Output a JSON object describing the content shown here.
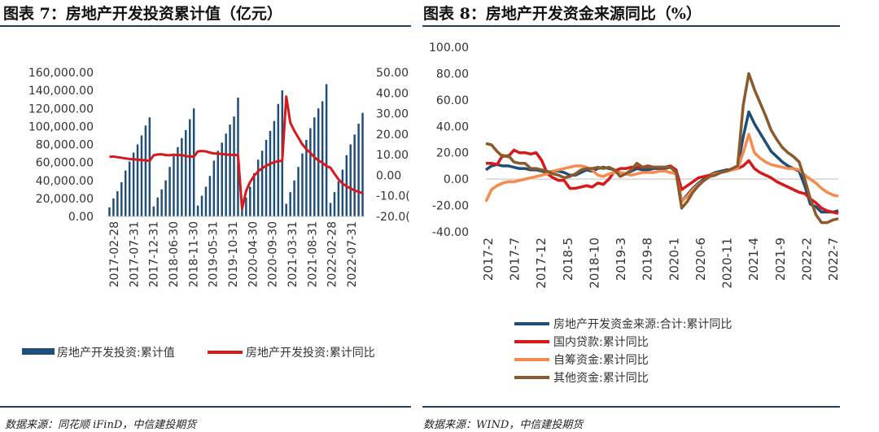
{
  "left": {
    "title": "图表 7：房地产开发投资累计值（亿元）",
    "source": "数据来源：同花顺 iFinD，中信建投期货"
  },
  "right": {
    "title": "图表 8：房地产开发资金来源同比（%）",
    "source": "数据来源：WIND，中信建投期货"
  },
  "colors": {
    "navy": "#1f4e79",
    "red": "#d7191c",
    "orange": "#f58b4c",
    "brown": "#8b5a2b"
  },
  "chart_data": [
    {
      "type": "bar+line",
      "title": "房地产开发投资累计值（亿元）",
      "y_left": {
        "range": [
          0,
          160000
        ],
        "ticks": [
          "160,000.00",
          "140,000.00",
          "120,000.00",
          "100,000.00",
          "80,000.00",
          "60,000.00",
          "40,000.00",
          "20,000.00",
          "0.00"
        ]
      },
      "y_right": {
        "range": [
          -20,
          50
        ],
        "ticks": [
          "50.00",
          "40.00",
          "30.00",
          "20.00",
          "10.00",
          "0.00",
          "-10.0(",
          "-20.0("
        ]
      },
      "x_ticks": [
        "2017-02-28",
        "2017-07-31",
        "2017-12-31",
        "2018-06-30",
        "2018-11-30",
        "2019-05-31",
        "2019-10-31",
        "2020-04-30",
        "2020-09-30",
        "2021-03-31",
        "2021-08-31",
        "2022-02-28",
        "2022-07-31"
      ],
      "bar_series": {
        "name": "房地产开发投资:累计值",
        "values": [
          10000,
          20000,
          28000,
          38000,
          51000,
          61000,
          71000,
          80000,
          90000,
          101000,
          110000,
          11000,
          21000,
          30000,
          40000,
          55000,
          67000,
          77000,
          87000,
          96000,
          108000,
          120000,
          12000,
          23000,
          33000,
          45000,
          62000,
          73000,
          82000,
          92000,
          102000,
          111000,
          132000,
          12000,
          21000,
          33000,
          48000,
          63000,
          73000,
          85000,
          95000,
          106000,
          125000,
          140000,
          14000,
          27000,
          40000,
          55000,
          70000,
          85000,
          98000,
          110000,
          120000,
          128000,
          147000,
          15000,
          27000,
          39000,
          52000,
          68000,
          80000,
          91000,
          103000,
          115000
        ]
      },
      "line_series": {
        "name": "房地产开发投资:累计同比",
        "values": [
          8.9,
          9.1,
          8.8,
          8.5,
          8.2,
          7.9,
          7.8,
          7.6,
          7.4,
          7.3,
          7.0,
          9.7,
          10.1,
          10.2,
          9.8,
          9.7,
          10.0,
          9.7,
          9.9,
          9.3,
          9.1,
          9.0,
          11.6,
          11.8,
          11.6,
          11.0,
          10.6,
          10.5,
          10.3,
          10.1,
          9.9,
          9.9,
          9.7,
          -16.3,
          -7.7,
          -3.3,
          -0.3,
          1.9,
          3.4,
          4.6,
          5.6,
          6.3,
          6.9,
          7.0,
          38.3,
          25.6,
          21.6,
          18.3,
          15.0,
          12.7,
          10.9,
          8.8,
          7.2,
          6.1,
          4.4,
          3.7,
          0.7,
          -2.0,
          -4.0,
          -5.4,
          -6.4,
          -7.4,
          -8.0,
          -8.8
        ]
      }
    },
    {
      "type": "line",
      "title": "房地产开发资金来源同比（%）",
      "ylim": [
        -40,
        100
      ],
      "y_ticks": [
        "100.00",
        "80.00",
        "60.00",
        "40.00",
        "20.00",
        "0.00",
        "-20.00",
        "-40.00"
      ],
      "x_ticks": [
        "2017-2",
        "2017-7",
        "2017-12",
        "2018-5",
        "2018-10",
        "2019-3",
        "2019-8",
        "2020-1",
        "2020-6",
        "2020-11",
        "2021-4",
        "2021-9",
        "2022-2",
        "2022-7"
      ],
      "series": [
        {
          "name": "房地产开发资金来源:合计:累计同比",
          "color": "#1f4e79",
          "values": [
            7,
            10,
            11,
            10,
            10,
            9,
            8,
            8,
            7,
            7,
            6,
            5,
            6,
            6,
            5,
            3,
            3,
            5,
            7,
            6,
            8,
            9,
            8,
            7,
            5,
            4,
            6,
            8,
            7,
            7,
            8,
            8,
            8,
            9,
            7,
            -17,
            -12,
            -7,
            -3,
            0,
            3,
            5,
            6,
            7,
            7,
            9,
            32,
            51,
            42,
            35,
            28,
            21,
            17,
            13,
            10,
            8,
            6,
            -5,
            -19,
            -21,
            -25,
            -25,
            -25,
            -24
          ]
        },
        {
          "name": "国内贷款:累计同比",
          "color": "#d7191c",
          "values": [
            12,
            12,
            11,
            18,
            17,
            22,
            20,
            20,
            19,
            20,
            14,
            4,
            1,
            -1,
            -1,
            -7,
            -7,
            -6,
            -5,
            -6,
            -3,
            -4,
            0,
            6,
            8,
            8,
            9,
            9,
            9,
            10,
            9,
            9,
            9,
            10,
            7,
            -8,
            -5,
            -2,
            1,
            2,
            3,
            4,
            5,
            6,
            7,
            8,
            10,
            14,
            8,
            5,
            3,
            1,
            -2,
            -4,
            -6,
            -8,
            -10,
            -11,
            -15,
            -18,
            -22,
            -24,
            -25,
            -26
          ]
        },
        {
          "name": "自筹资金:累计同比",
          "color": "#f58b4c",
          "values": [
            -17,
            -8,
            -5,
            -3,
            -2,
            -2,
            -1,
            0,
            1,
            2,
            3,
            4,
            6,
            7,
            8,
            9,
            10,
            10,
            9,
            7,
            3,
            2,
            4,
            5,
            5,
            4,
            3,
            4,
            5,
            5,
            5,
            6,
            6,
            5,
            4,
            -17,
            -13,
            -8,
            -4,
            -1,
            2,
            4,
            5,
            6,
            7,
            8,
            20,
            34,
            20,
            16,
            13,
            11,
            10,
            9,
            8,
            8,
            7,
            3,
            0,
            -3,
            -7,
            -10,
            -12,
            -13
          ]
        },
        {
          "name": "其他资金:累计同比",
          "color": "#8b5a2b",
          "values": [
            27,
            26,
            21,
            17,
            18,
            13,
            12,
            12,
            8,
            8,
            7,
            6,
            4,
            3,
            1,
            2,
            4,
            7,
            8,
            8,
            9,
            8,
            9,
            7,
            2,
            4,
            7,
            12,
            9,
            9,
            9,
            9,
            9,
            9,
            5,
            -22,
            -17,
            -10,
            -5,
            -1,
            2,
            3,
            5,
            6,
            8,
            10,
            56,
            80,
            68,
            58,
            48,
            37,
            30,
            24,
            20,
            17,
            13,
            0,
            -15,
            -27,
            -33,
            -33,
            -31,
            -30
          ]
        }
      ]
    }
  ]
}
